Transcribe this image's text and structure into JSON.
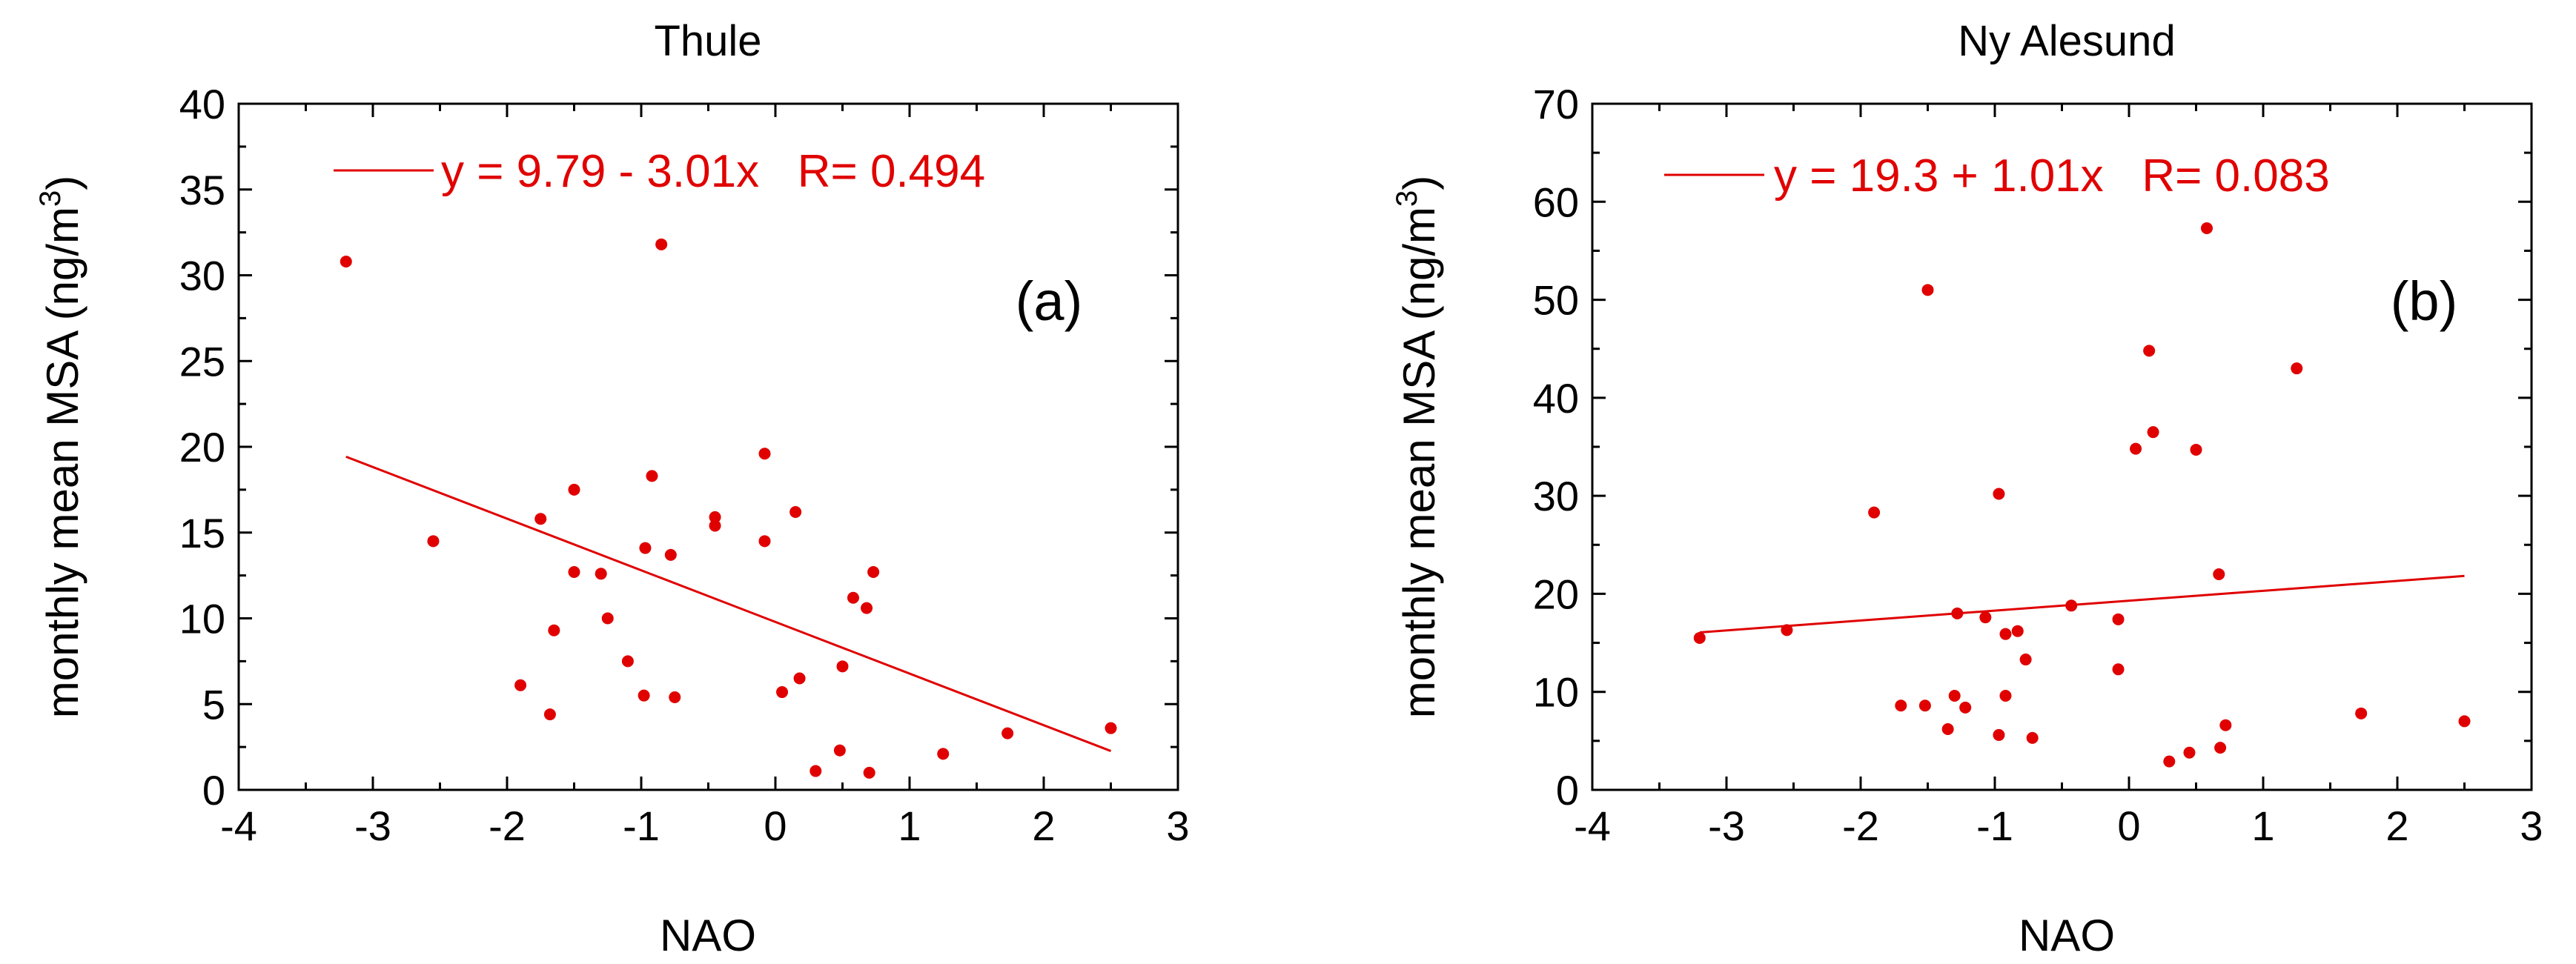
{
  "colors": {
    "data": "#e00000",
    "axis": "#000000",
    "background": "#ffffff"
  },
  "chart_data": [
    {
      "type": "scatter",
      "title": "Thule",
      "panel_label": "(a)",
      "xlabel": "NAO",
      "ylabel": "monthly mean MSA (ng/m",
      "ylabel_sup": "3",
      "ylabel_close": ")",
      "xlim": [
        -4,
        3
      ],
      "ylim": [
        0,
        40
      ],
      "xticks": [
        -4,
        -3,
        -2,
        -1,
        0,
        1,
        2,
        3
      ],
      "yticks": [
        0,
        5,
        10,
        15,
        20,
        25,
        30,
        35,
        40
      ],
      "fit": {
        "intercept": 9.79,
        "slope": -3.01,
        "x_range": [
          -3.2,
          2.5
        ]
      },
      "legend_text": "y = 9.79 - 3.01x   R= 0.494",
      "points": [
        [
          -3.2,
          30.8
        ],
        [
          -2.55,
          14.5
        ],
        [
          -1.9,
          6.1
        ],
        [
          -1.75,
          15.8
        ],
        [
          -1.68,
          4.4
        ],
        [
          -1.65,
          9.3
        ],
        [
          -1.5,
          17.5
        ],
        [
          -1.5,
          12.7
        ],
        [
          -1.3,
          12.6
        ],
        [
          -1.25,
          10.0
        ],
        [
          -1.1,
          7.5
        ],
        [
          -0.98,
          5.5
        ],
        [
          -0.97,
          14.1
        ],
        [
          -0.92,
          18.3
        ],
        [
          -0.85,
          31.8
        ],
        [
          -0.78,
          13.7
        ],
        [
          -0.75,
          5.4
        ],
        [
          -0.45,
          15.9
        ],
        [
          -0.45,
          15.4
        ],
        [
          -0.08,
          19.6
        ],
        [
          -0.08,
          14.5
        ],
        [
          0.05,
          5.7
        ],
        [
          0.15,
          16.2
        ],
        [
          0.18,
          6.5
        ],
        [
          0.3,
          1.1
        ],
        [
          0.48,
          2.3
        ],
        [
          0.5,
          7.2
        ],
        [
          0.58,
          11.2
        ],
        [
          0.68,
          10.6
        ],
        [
          0.7,
          1.0
        ],
        [
          0.73,
          12.7
        ],
        [
          1.25,
          2.1
        ],
        [
          1.73,
          3.3
        ],
        [
          2.5,
          3.6
        ]
      ]
    },
    {
      "type": "scatter",
      "title": "Ny Alesund",
      "panel_label": "(b)",
      "xlabel": "NAO",
      "ylabel": "monthly mean MSA (ng/m",
      "ylabel_sup": "3",
      "ylabel_close": ")",
      "xlim": [
        -4,
        3
      ],
      "ylim": [
        0,
        70
      ],
      "xticks": [
        -4,
        -3,
        -2,
        -1,
        0,
        1,
        2,
        3
      ],
      "yticks": [
        0,
        10,
        20,
        30,
        40,
        50,
        60,
        70
      ],
      "fit": {
        "intercept": 19.3,
        "slope": 1.01,
        "x_range": [
          -3.2,
          2.5
        ]
      },
      "legend_text": "y = 19.3 + 1.01x   R= 0.083",
      "points": [
        [
          -3.2,
          15.5
        ],
        [
          -2.55,
          16.3
        ],
        [
          -1.9,
          28.3
        ],
        [
          -1.7,
          8.6
        ],
        [
          -1.52,
          8.6
        ],
        [
          -1.5,
          51.0
        ],
        [
          -1.35,
          6.2
        ],
        [
          -1.3,
          9.6
        ],
        [
          -1.28,
          18.0
        ],
        [
          -1.22,
          8.4
        ],
        [
          -1.07,
          17.6
        ],
        [
          -0.97,
          5.6
        ],
        [
          -0.97,
          30.2
        ],
        [
          -0.92,
          9.6
        ],
        [
          -0.92,
          15.9
        ],
        [
          -0.83,
          16.2
        ],
        [
          -0.77,
          13.3
        ],
        [
          -0.72,
          5.3
        ],
        [
          -0.43,
          18.8
        ],
        [
          -0.08,
          12.3
        ],
        [
          -0.08,
          17.4
        ],
        [
          0.05,
          34.8
        ],
        [
          0.15,
          44.8
        ],
        [
          0.18,
          36.5
        ],
        [
          0.3,
          2.9
        ],
        [
          0.45,
          3.8
        ],
        [
          0.5,
          34.7
        ],
        [
          0.58,
          57.3
        ],
        [
          0.67,
          22.0
        ],
        [
          0.68,
          4.3
        ],
        [
          0.72,
          6.6
        ],
        [
          1.25,
          43.0
        ],
        [
          1.73,
          7.8
        ],
        [
          2.5,
          7.0
        ]
      ]
    }
  ]
}
